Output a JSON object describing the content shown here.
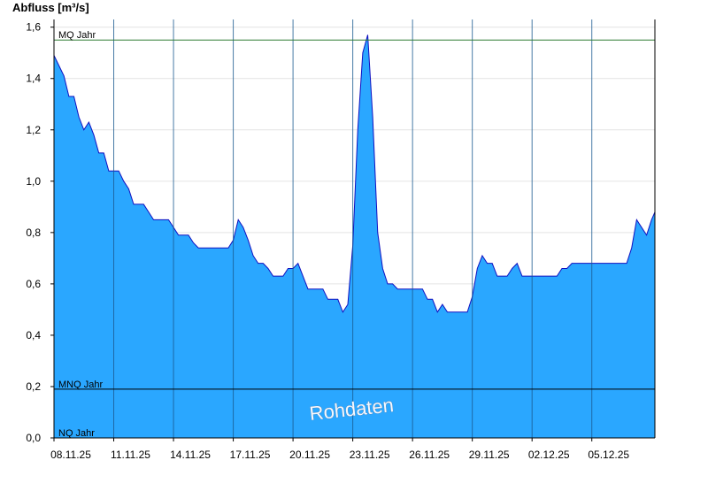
{
  "chart_data": {
    "type": "area",
    "y_axis_label": "Abfluss [m³/s]",
    "annotation": "Rohdaten",
    "color": "#2aa7ff",
    "line_color": "#1010c0",
    "grid": true,
    "xlim": [
      "08.11.25 00:00",
      "08.12.25 04:00"
    ],
    "xticks": [
      "08.11.25",
      "11.11.25",
      "14.11.25",
      "17.11.25",
      "20.11.25",
      "23.11.25",
      "26.11.25",
      "29.11.25",
      "02.12.25",
      "05.12.25"
    ],
    "ylim": [
      0,
      1.63
    ],
    "yticks": [
      {
        "value": 0,
        "label": "0,0"
      },
      {
        "value": 0.2,
        "label": "0,2"
      },
      {
        "value": 0.4,
        "label": "0,4"
      },
      {
        "value": 0.6,
        "label": "0,6"
      },
      {
        "value": 0.8,
        "label": "0,8"
      },
      {
        "value": 1.0,
        "label": "1,0"
      },
      {
        "value": 1.2,
        "label": "1,2"
      },
      {
        "value": 1.4,
        "label": "1,4"
      },
      {
        "value": 1.6,
        "label": "1,6"
      }
    ],
    "reference_lines": [
      {
        "label": "MQ Jahr",
        "value": 1.55,
        "color": "#2e7d32"
      },
      {
        "label": "MNQ Jahr",
        "value": 0.19,
        "color": "#000000"
      },
      {
        "label": "NQ Jahr",
        "value": 0,
        "color": "#000000"
      }
    ],
    "x": [
      "08.11.25 00:00",
      "08.11.25 06:00",
      "08.11.25 12:00",
      "08.11.25 18:00",
      "09.11.25 00:00",
      "09.11.25 06:00",
      "09.11.25 12:00",
      "09.11.25 18:00",
      "10.11.25 00:00",
      "10.11.25 06:00",
      "10.11.25 12:00",
      "10.11.25 18:00",
      "11.11.25 00:00",
      "11.11.25 06:00",
      "11.11.25 12:00",
      "11.11.25 18:00",
      "12.11.25 00:00",
      "12.11.25 06:00",
      "12.11.25 12:00",
      "12.11.25 18:00",
      "13.11.25 00:00",
      "13.11.25 06:00",
      "13.11.25 12:00",
      "13.11.25 18:00",
      "14.11.25 00:00",
      "14.11.25 06:00",
      "14.11.25 12:00",
      "14.11.25 18:00",
      "15.11.25 00:00",
      "15.11.25 06:00",
      "15.11.25 12:00",
      "15.11.25 18:00",
      "16.11.25 00:00",
      "16.11.25 06:00",
      "16.11.25 12:00",
      "16.11.25 18:00",
      "17.11.25 00:00",
      "17.11.25 06:00",
      "17.11.25 12:00",
      "17.11.25 18:00",
      "18.11.25 00:00",
      "18.11.25 06:00",
      "18.11.25 12:00",
      "18.11.25 18:00",
      "19.11.25 00:00",
      "19.11.25 06:00",
      "19.11.25 12:00",
      "19.11.25 18:00",
      "20.11.25 00:00",
      "20.11.25 06:00",
      "20.11.25 12:00",
      "20.11.25 18:00",
      "21.11.25 00:00",
      "21.11.25 06:00",
      "21.11.25 12:00",
      "21.11.25 18:00",
      "22.11.25 00:00",
      "22.11.25 06:00",
      "22.11.25 12:00",
      "22.11.25 18:00",
      "23.11.25 00:00",
      "23.11.25 06:00",
      "23.11.25 12:00",
      "23.11.25 18:00",
      "24.11.25 00:00",
      "24.11.25 06:00",
      "24.11.25 12:00",
      "24.11.25 18:00",
      "25.11.25 00:00",
      "25.11.25 06:00",
      "25.11.25 12:00",
      "25.11.25 18:00",
      "26.11.25 00:00",
      "26.11.25 06:00",
      "26.11.25 12:00",
      "26.11.25 18:00",
      "27.11.25 00:00",
      "27.11.25 06:00",
      "27.11.25 12:00",
      "27.11.25 18:00",
      "28.11.25 00:00",
      "28.11.25 06:00",
      "28.11.25 12:00",
      "28.11.25 18:00",
      "29.11.25 00:00",
      "29.11.25 06:00",
      "29.11.25 12:00",
      "29.11.25 18:00",
      "30.11.25 00:00",
      "30.11.25 06:00",
      "30.11.25 12:00",
      "30.11.25 18:00",
      "01.12.25 00:00",
      "01.12.25 06:00",
      "01.12.25 12:00",
      "01.12.25 18:00",
      "02.12.25 00:00",
      "02.12.25 06:00",
      "02.12.25 12:00",
      "02.12.25 18:00",
      "03.12.25 00:00",
      "03.12.25 06:00",
      "03.12.25 12:00",
      "03.12.25 18:00",
      "04.12.25 00:00",
      "04.12.25 06:00",
      "04.12.25 12:00",
      "04.12.25 18:00",
      "05.12.25 00:00",
      "05.12.25 06:00",
      "05.12.25 12:00",
      "05.12.25 18:00",
      "06.12.25 00:00",
      "06.12.25 06:00",
      "06.12.25 12:00",
      "06.12.25 18:00",
      "07.12.25 00:00",
      "07.12.25 06:00",
      "07.12.25 12:00",
      "07.12.25 18:00",
      "08.12.25 00:00",
      "08.12.25 04:00"
    ],
    "values": [
      1.49,
      1.45,
      1.41,
      1.33,
      1.33,
      1.25,
      1.2,
      1.23,
      1.18,
      1.11,
      1.11,
      1.04,
      1.04,
      1.04,
      1.0,
      0.97,
      0.91,
      0.91,
      0.91,
      0.88,
      0.85,
      0.85,
      0.85,
      0.85,
      0.82,
      0.79,
      0.79,
      0.79,
      0.76,
      0.74,
      0.74,
      0.74,
      0.74,
      0.74,
      0.74,
      0.74,
      0.77,
      0.85,
      0.82,
      0.77,
      0.71,
      0.68,
      0.68,
      0.66,
      0.63,
      0.63,
      0.63,
      0.66,
      0.66,
      0.68,
      0.63,
      0.58,
      0.58,
      0.58,
      0.58,
      0.54,
      0.54,
      0.54,
      0.49,
      0.52,
      0.75,
      1.2,
      1.5,
      1.57,
      1.25,
      0.8,
      0.66,
      0.6,
      0.6,
      0.58,
      0.58,
      0.58,
      0.58,
      0.58,
      0.58,
      0.54,
      0.54,
      0.49,
      0.52,
      0.49,
      0.49,
      0.49,
      0.49,
      0.49,
      0.55,
      0.66,
      0.71,
      0.68,
      0.68,
      0.63,
      0.63,
      0.63,
      0.66,
      0.68,
      0.63,
      0.63,
      0.63,
      0.63,
      0.63,
      0.63,
      0.63,
      0.63,
      0.66,
      0.66,
      0.68,
      0.68,
      0.68,
      0.68,
      0.68,
      0.68,
      0.68,
      0.68,
      0.68,
      0.68,
      0.68,
      0.68,
      0.74,
      0.85,
      0.82,
      0.79,
      0.85,
      0.88
    ]
  }
}
